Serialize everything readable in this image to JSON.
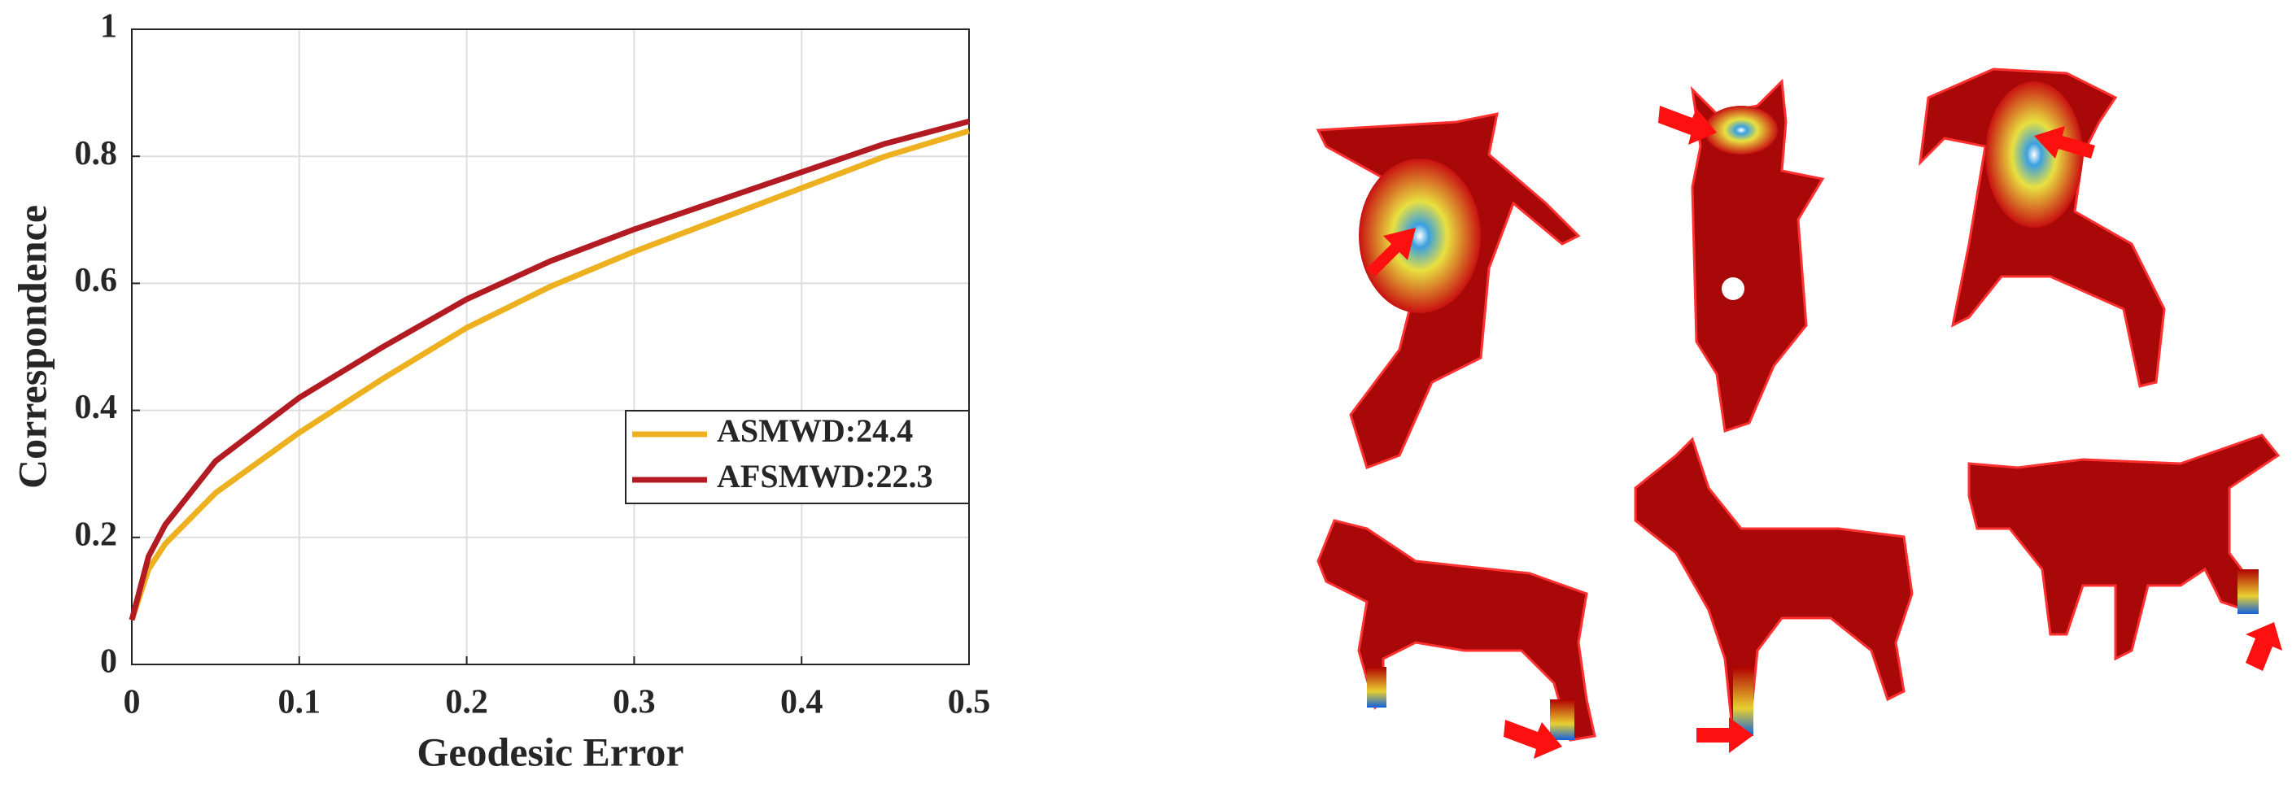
{
  "chart_data": {
    "type": "line",
    "xlabel": "Geodesic Error",
    "ylabel": "Correspondence",
    "x": [
      0,
      0.01,
      0.02,
      0.05,
      0.1,
      0.15,
      0.2,
      0.25,
      0.3,
      0.35,
      0.4,
      0.45,
      0.5
    ],
    "series": [
      {
        "name": "ASMWD:24.4",
        "color": "#edb120",
        "values": [
          0.07,
          0.15,
          0.19,
          0.27,
          0.365,
          0.45,
          0.53,
          0.595,
          0.65,
          0.7,
          0.75,
          0.8,
          0.84
        ]
      },
      {
        "name": "AFSMWD:22.3",
        "color": "#b31b22",
        "values": [
          0.07,
          0.17,
          0.22,
          0.32,
          0.42,
          0.5,
          0.575,
          0.635,
          0.685,
          0.73,
          0.775,
          0.82,
          0.855
        ]
      }
    ],
    "xlim": [
      0,
      0.5
    ],
    "ylim": [
      0,
      1
    ],
    "xticks": [
      0,
      0.1,
      0.2,
      0.3,
      0.4,
      0.5
    ],
    "yticks": [
      0,
      0.2,
      0.4,
      0.6,
      0.8,
      1
    ],
    "grid": true,
    "legend": "center-right"
  }
}
